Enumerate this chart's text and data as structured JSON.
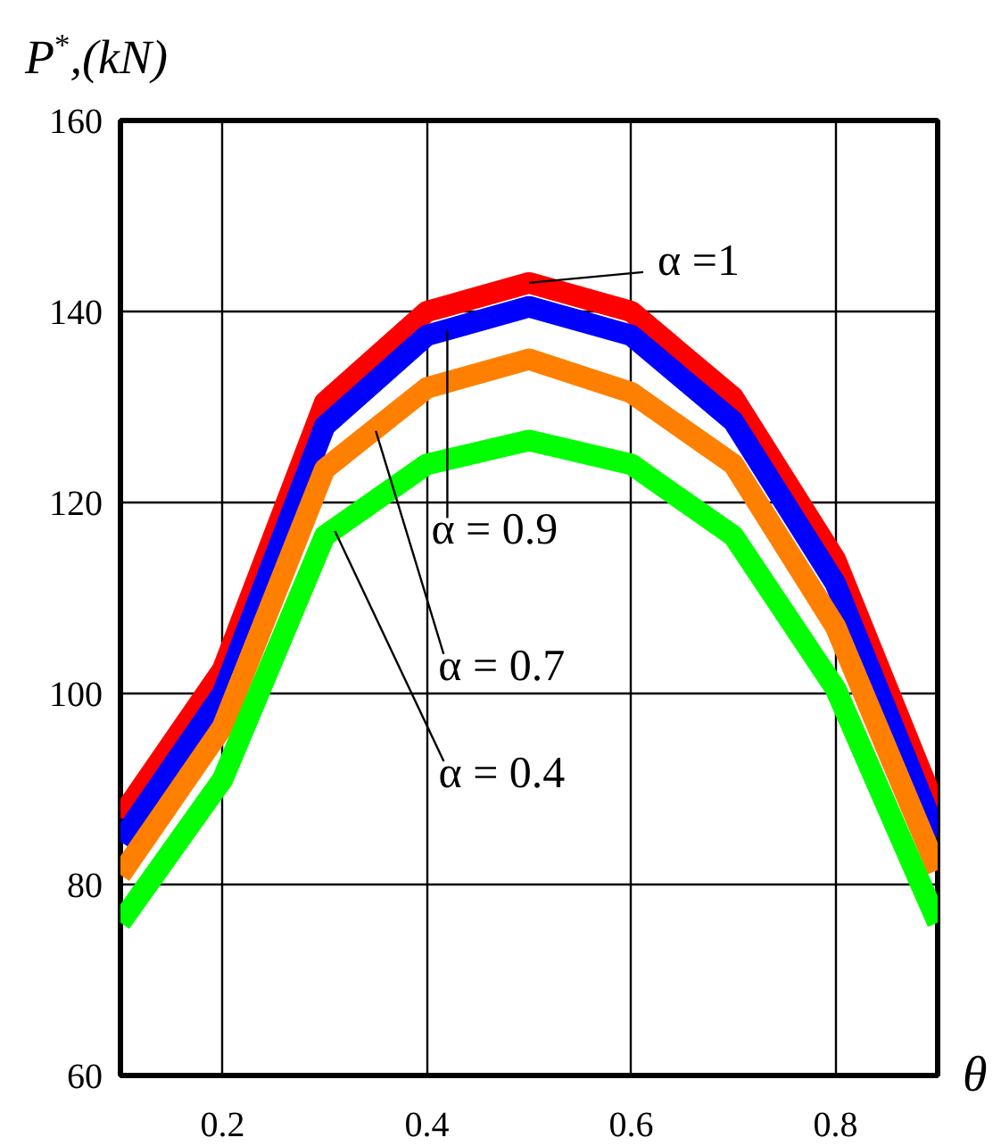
{
  "chart_data": {
    "type": "line",
    "xlabel": "θ",
    "ylabel": "P$^{*}$,(kN)",
    "xlim": [
      0.1,
      0.9
    ],
    "ylim": [
      60,
      160
    ],
    "xticks": [
      0.2,
      0.4,
      0.6,
      0.8
    ],
    "yticks": [
      60,
      80,
      100,
      120,
      140,
      160
    ],
    "grid": true,
    "x": [
      0.1,
      0.2,
      0.3,
      0.4,
      0.5,
      0.6,
      0.7,
      0.8,
      0.9
    ],
    "series": [
      {
        "color": "#ff0000",
        "values": [
          87,
          102.5,
          130.5,
          140,
          143,
          140,
          131,
          114,
          87.5
        ]
      },
      {
        "color": "#0000ff",
        "values": [
          84.5,
          100,
          128,
          137.5,
          140.5,
          137.5,
          128.5,
          111.5,
          85
        ]
      },
      {
        "color": "#ff8000",
        "values": [
          81,
          96.5,
          123.5,
          132,
          135,
          131.5,
          124,
          107,
          81.5
        ]
      },
      {
        "color": "#00ff00",
        "values": [
          76,
          91,
          116.5,
          124,
          126.5,
          124,
          116.5,
          100.5,
          76
        ]
      }
    ],
    "annotations": [
      {
        "text": "α =1",
        "x": 0.5,
        "y": 143
      },
      {
        "text": "α = 0.9",
        "x": 0.42,
        "y": 138
      },
      {
        "text": "α = 0.7",
        "x": 0.35,
        "y": 127.5
      },
      {
        "text": "α = 0.4",
        "x": 0.31,
        "y": 117
      }
    ]
  }
}
